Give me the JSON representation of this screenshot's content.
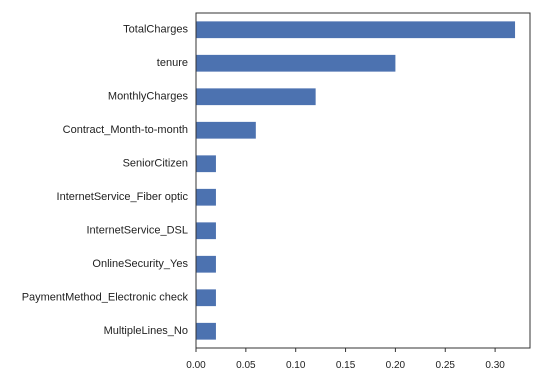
{
  "chart_data": {
    "type": "bar",
    "orientation": "horizontal",
    "title": "",
    "xlabel": "",
    "ylabel": "",
    "categories": [
      "TotalCharges",
      "tenure",
      "MonthlyCharges",
      "Contract_Month-to-month",
      "SeniorCitizen",
      "InternetService_Fiber optic",
      "InternetService_DSL",
      "OnlineSecurity_Yes",
      "PaymentMethod_Electronic check",
      "MultipleLines_No"
    ],
    "values": [
      0.32,
      0.2,
      0.12,
      0.06,
      0.02,
      0.02,
      0.02,
      0.02,
      0.02,
      0.02
    ],
    "xlim": [
      0.0,
      0.335
    ],
    "xticks": [
      0.0,
      0.05,
      0.1,
      0.15,
      0.2,
      0.25,
      0.3
    ],
    "xtick_labels": [
      "0.00",
      "0.05",
      "0.10",
      "0.15",
      "0.20",
      "0.25",
      "0.30"
    ],
    "bar_color": "#4c72b0",
    "grid": false,
    "legend": "none"
  }
}
